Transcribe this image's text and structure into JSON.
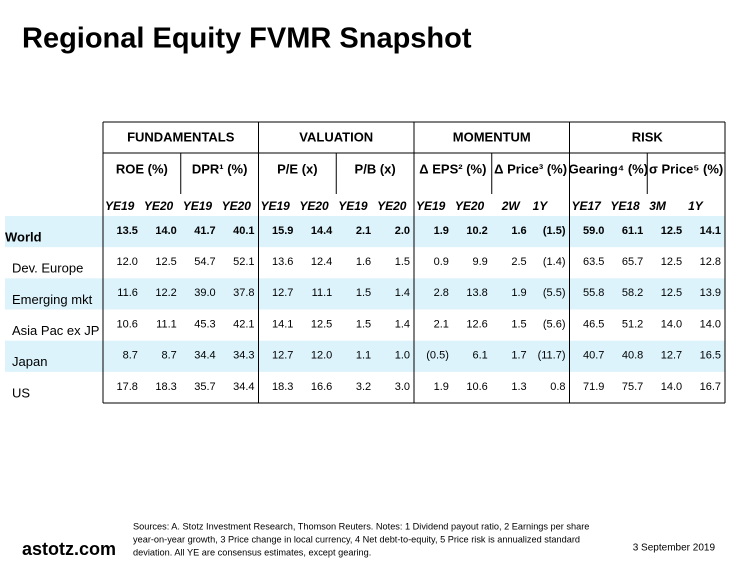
{
  "title": "Regional Equity FVMR Snapshot",
  "table": {
    "groups": [
      "FUNDAMENTALS",
      "VALUATION",
      "MOMENTUM",
      "RISK"
    ],
    "metrics": [
      "ROE (%)",
      "DPR¹ (%)",
      "P/E (x)",
      "P/B (x)",
      "Δ EPS² (%)",
      "Δ Price³ (%)",
      "Gearing⁴ (%)",
      "σ Price⁵ (%)"
    ],
    "periods": [
      "YE19",
      "YE20",
      "YE19",
      "YE20",
      "YE19",
      "YE20",
      "YE19",
      "YE20",
      "YE19",
      "YE20",
      "2W",
      "1Y",
      "YE17",
      "YE18",
      "3M",
      "1Y"
    ],
    "rows": [
      {
        "label": "World",
        "values": [
          "13.5",
          "14.0",
          "41.7",
          "40.1",
          "15.9",
          "14.4",
          "2.1",
          "2.0",
          "1.9",
          "10.2",
          "1.6",
          "(1.5)",
          "59.0",
          "61.1",
          "12.5",
          "14.1"
        ]
      },
      {
        "label": "Dev. Europe",
        "values": [
          "12.0",
          "12.5",
          "54.7",
          "52.1",
          "13.6",
          "12.4",
          "1.6",
          "1.5",
          "0.9",
          "9.9",
          "2.5",
          "(1.4)",
          "63.5",
          "65.7",
          "12.5",
          "12.8"
        ]
      },
      {
        "label": "Emerging mkt",
        "values": [
          "11.6",
          "12.2",
          "39.0",
          "37.8",
          "12.7",
          "11.1",
          "1.5",
          "1.4",
          "2.8",
          "13.8",
          "1.9",
          "(5.5)",
          "55.8",
          "58.2",
          "12.5",
          "13.9"
        ]
      },
      {
        "label": "Asia Pac ex JP",
        "values": [
          "10.6",
          "11.1",
          "45.3",
          "42.1",
          "14.1",
          "12.5",
          "1.5",
          "1.4",
          "2.1",
          "12.6",
          "1.5",
          "(5.6)",
          "46.5",
          "51.2",
          "14.0",
          "14.0"
        ]
      },
      {
        "label": "Japan",
        "values": [
          "8.7",
          "8.7",
          "34.4",
          "34.3",
          "12.7",
          "12.0",
          "1.1",
          "1.0",
          "(0.5)",
          "6.1",
          "1.7",
          "(11.7)",
          "40.7",
          "40.8",
          "12.7",
          "16.5"
        ]
      },
      {
        "label": "US",
        "values": [
          "17.8",
          "18.3",
          "35.7",
          "34.4",
          "18.3",
          "16.6",
          "3.2",
          "3.0",
          "1.9",
          "10.6",
          "1.3",
          "0.8",
          "71.9",
          "75.7",
          "14.0",
          "16.7"
        ]
      }
    ]
  },
  "footer": {
    "site": "astotz.com",
    "notes": [
      "Sources: A. Stotz Investment Research, Thomson Reuters. Notes: 1 Dividend payout ratio, 2 Earnings per share",
      "year-on-year growth, 3 Price change in local currency, 4 Net debt-to-equity, 5 Price risk is annualized standard",
      "deviation. All YE are consensus estimates, except gearing."
    ],
    "date": "3 September 2019"
  }
}
